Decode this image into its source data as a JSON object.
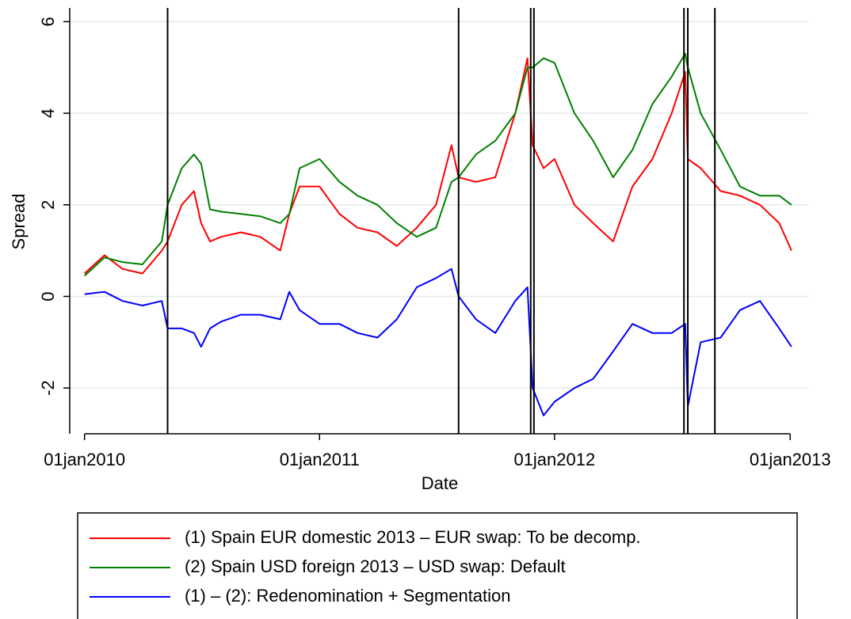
{
  "chart_data": {
    "type": "line",
    "x_label": "Date",
    "y_label": "Spread",
    "x": [
      "2010-01-01",
      "2010-02-01",
      "2010-03-01",
      "2010-04-01",
      "2010-05-01",
      "2010-05-10",
      "2010-06-01",
      "2010-06-20",
      "2010-07-01",
      "2010-07-15",
      "2010-08-01",
      "2010-09-01",
      "2010-10-01",
      "2010-11-01",
      "2010-11-15",
      "2010-12-01",
      "2011-01-01",
      "2011-02-01",
      "2011-03-01",
      "2011-04-01",
      "2011-05-01",
      "2011-06-01",
      "2011-07-01",
      "2011-07-25",
      "2011-08-05",
      "2011-09-01",
      "2011-10-01",
      "2011-11-01",
      "2011-11-20",
      "2011-11-28",
      "2011-12-15",
      "2012-01-01",
      "2012-02-01",
      "2012-03-01",
      "2012-04-01",
      "2012-05-01",
      "2012-06-01",
      "2012-07-01",
      "2012-07-22",
      "2012-07-26",
      "2012-08-15",
      "2012-09-15",
      "2012-10-15",
      "2012-11-15",
      "2012-12-15",
      "2013-01-03"
    ],
    "series": [
      {
        "name": "(1) Spain EUR domestic 2013 – EUR swap: To be decomp.",
        "color": "#ff0000",
        "values": [
          0.5,
          0.9,
          0.6,
          0.5,
          1.0,
          1.2,
          2.0,
          2.3,
          1.6,
          1.2,
          1.3,
          1.4,
          1.3,
          1.0,
          1.8,
          2.4,
          2.4,
          1.8,
          1.5,
          1.4,
          1.1,
          1.5,
          2.0,
          3.3,
          2.6,
          2.5,
          2.6,
          4.0,
          5.2,
          3.3,
          2.8,
          3.0,
          2.0,
          1.6,
          1.2,
          2.4,
          3.0,
          4.0,
          4.9,
          3.0,
          2.8,
          2.3,
          2.2,
          2.0,
          1.6,
          1.0
        ]
      },
      {
        "name": "(2) Spain USD foreign 2013 – USD swap: Default",
        "color": "#008000",
        "values": [
          0.45,
          0.85,
          0.75,
          0.7,
          1.2,
          2.0,
          2.8,
          3.1,
          2.9,
          1.9,
          1.85,
          1.8,
          1.75,
          1.6,
          1.8,
          2.8,
          3.0,
          2.5,
          2.2,
          2.0,
          1.6,
          1.3,
          1.5,
          2.5,
          2.6,
          3.1,
          3.4,
          4.0,
          5.0,
          5.0,
          5.2,
          5.1,
          4.0,
          3.4,
          2.6,
          3.2,
          4.2,
          4.8,
          5.3,
          5.0,
          4.0,
          3.2,
          2.4,
          2.2,
          2.2,
          2.0
        ]
      },
      {
        "name": "(1) – (2): Redenomination + Segmentation",
        "color": "#0000ff",
        "values": [
          0.05,
          0.1,
          -0.1,
          -0.2,
          -0.1,
          -0.7,
          -0.7,
          -0.8,
          -1.1,
          -0.7,
          -0.55,
          -0.4,
          -0.4,
          -0.5,
          0.1,
          -0.3,
          -0.6,
          -0.6,
          -0.8,
          -0.9,
          -0.5,
          0.2,
          0.4,
          0.6,
          0.0,
          -0.5,
          -0.8,
          -0.1,
          0.2,
          -2.0,
          -2.6,
          -2.3,
          -2.0,
          -1.8,
          -1.2,
          -0.6,
          -0.8,
          -0.8,
          -0.6,
          -2.4,
          -1.0,
          -0.9,
          -0.3,
          -0.1,
          -0.7,
          -1.1
        ]
      }
    ],
    "vlines": [
      "2010-05-10",
      "2011-08-05",
      "2011-11-25",
      "2011-11-30",
      "2012-07-20",
      "2012-07-26",
      "2012-09-06"
    ],
    "xlim": [
      "2009-12-09",
      "2013-01-29"
    ],
    "xticks": [
      {
        "value": "2010-01-01",
        "label": "01jan2010"
      },
      {
        "value": "2011-01-01",
        "label": "01jan2011"
      },
      {
        "value": "2012-01-01",
        "label": "01jan2012"
      },
      {
        "value": "2013-01-01",
        "label": "01jan2013"
      }
    ],
    "ylim": [
      -3,
      6.3
    ],
    "yticks": [
      -2,
      0,
      2,
      4,
      6
    ],
    "grid": true,
    "legend": "bottom"
  }
}
